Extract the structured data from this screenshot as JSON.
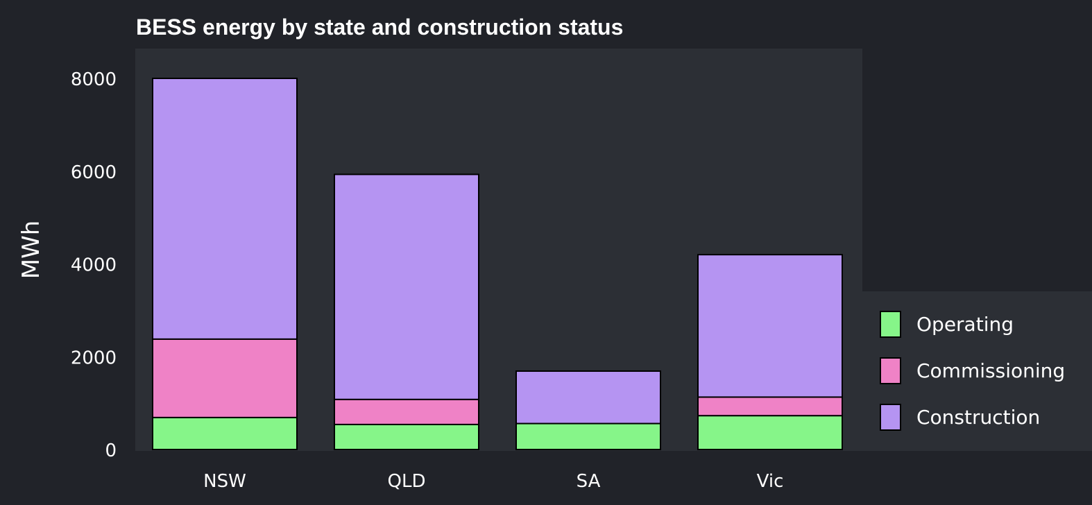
{
  "chart_data": {
    "type": "bar",
    "stacked": true,
    "title": "BESS energy by state and construction status",
    "xlabel": "",
    "ylabel": "MWh",
    "categories": [
      "NSW",
      "QLD",
      "SA",
      "Vic"
    ],
    "series": [
      {
        "name": "Operating",
        "values": [
          690,
          540,
          560,
          730
        ],
        "color": "#86f589"
      },
      {
        "name": "Commissioning",
        "values": [
          1690,
          540,
          0,
          400
        ],
        "color": "#ef82c6"
      },
      {
        "name": "Construction",
        "values": [
          5620,
          4850,
          1130,
          3070
        ],
        "color": "#b594f2"
      }
    ],
    "ylim": [
      0,
      8700
    ],
    "yticks": [
      0,
      2000,
      4000,
      6000,
      8000
    ],
    "grid": false,
    "legend": "right",
    "colors": {
      "background": "#212329",
      "plot_panel": "#2c2f35",
      "bar_outline": "#000000",
      "text": "#ffffff"
    }
  }
}
